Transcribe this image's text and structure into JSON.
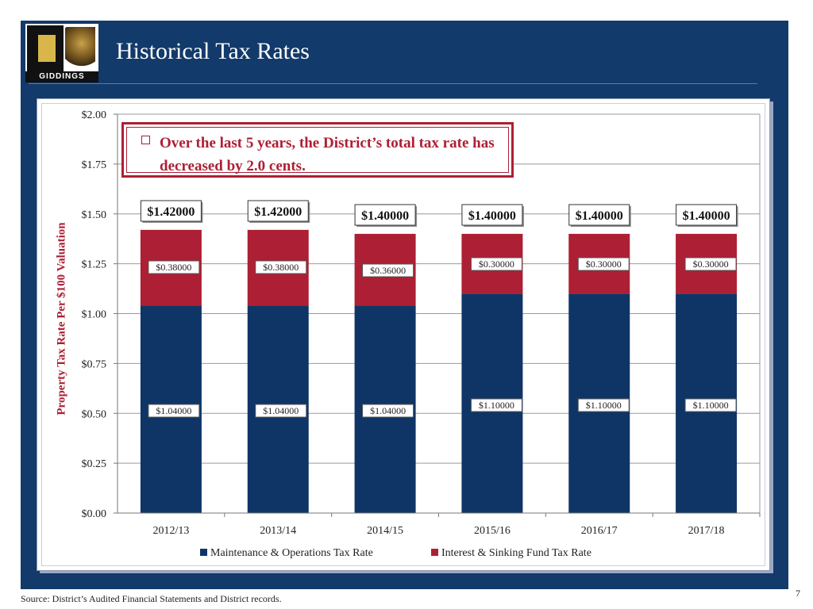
{
  "slide": {
    "title": "Historical Tax Rates",
    "logo_text": "GIDDINGS",
    "page_number": "7",
    "source": "Source: District’s Audited Financial Statements and District records."
  },
  "callout": {
    "text": "Over the last 5 years, the District’s total tax rate has decreased by 2.0 cents."
  },
  "colors": {
    "navy": "#123a6a",
    "maintenance": "#0f3567",
    "interest": "#ad1f34",
    "accent_red": "#ad1f34"
  },
  "chart_data": {
    "type": "bar",
    "stacked": true,
    "ylabel": "Property Tax Rate Per $100 Valuation",
    "ylim": [
      0,
      2.0
    ],
    "yticks": [
      "$0.00",
      "$0.25",
      "$0.50",
      "$0.75",
      "$1.00",
      "$1.25",
      "$1.50",
      "$1.75",
      "$2.00"
    ],
    "ytick_values": [
      0,
      0.25,
      0.5,
      0.75,
      1.0,
      1.25,
      1.5,
      1.75,
      2.0
    ],
    "categories": [
      "2012/13",
      "2013/14",
      "2014/15",
      "2015/16",
      "2016/17",
      "2017/18"
    ],
    "series": [
      {
        "name": "Maintenance & Operations Tax Rate",
        "values": [
          1.04,
          1.04,
          1.04,
          1.1,
          1.1,
          1.1
        ],
        "labels": [
          "$1.04000",
          "$1.04000",
          "$1.04000",
          "$1.10000",
          "$1.10000",
          "$1.10000"
        ]
      },
      {
        "name": "Interest & Sinking Fund Tax Rate",
        "values": [
          0.38,
          0.38,
          0.36,
          0.3,
          0.3,
          0.3
        ],
        "labels": [
          "$0.38000",
          "$0.38000",
          "$0.36000",
          "$0.30000",
          "$0.30000",
          "$0.30000"
        ]
      }
    ],
    "totals": [
      1.42,
      1.42,
      1.4,
      1.4,
      1.4,
      1.4
    ],
    "total_labels": [
      "$1.42000",
      "$1.42000",
      "$1.40000",
      "$1.40000",
      "$1.40000",
      "$1.40000"
    ],
    "grid": true,
    "legend_position": "bottom"
  }
}
